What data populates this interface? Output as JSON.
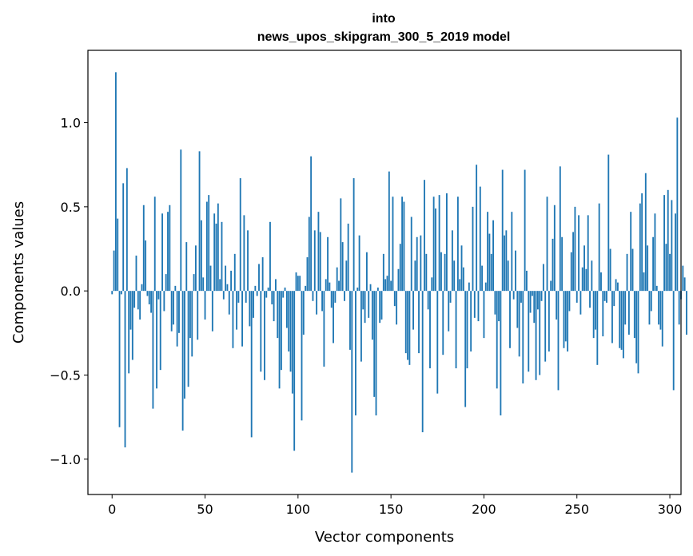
{
  "chart_data": {
    "type": "bar",
    "title_lines": [
      "into",
      "news_upos_skipgram_300_5_2019 model"
    ],
    "xlabel": "Vector components",
    "ylabel": "Components values",
    "xlim": [
      -13,
      306
    ],
    "ylim": [
      -1.21,
      1.43
    ],
    "x_ticks": [
      0,
      50,
      100,
      150,
      200,
      250,
      300
    ],
    "x_tick_labels": [
      "0",
      "50",
      "100",
      "150",
      "200",
      "250",
      "300"
    ],
    "y_ticks": [
      -1.0,
      -0.5,
      0.0,
      0.5,
      1.0
    ],
    "y_tick_labels": [
      "−1.0",
      "−0.5",
      "0.0",
      "0.5",
      "1.0"
    ],
    "grid": false,
    "bar_color": "#1f77b4",
    "bar_width": 0.8,
    "values": [
      -0.02,
      0.24,
      1.3,
      0.43,
      -0.81,
      -0.02,
      0.64,
      -0.93,
      0.73,
      -0.49,
      -0.23,
      -0.41,
      -0.1,
      0.21,
      -0.11,
      -0.17,
      0.04,
      0.51,
      0.3,
      -0.03,
      -0.08,
      -0.13,
      -0.7,
      0.56,
      -0.58,
      -0.05,
      -0.47,
      0.46,
      -0.12,
      0.1,
      0.47,
      0.51,
      -0.24,
      -0.2,
      0.03,
      -0.33,
      -0.25,
      0.84,
      -0.83,
      -0.64,
      0.29,
      -0.57,
      -0.28,
      -0.39,
      0.1,
      0.27,
      -0.29,
      0.83,
      0.42,
      0.08,
      -0.17,
      0.53,
      0.57,
      0.15,
      -0.24,
      0.46,
      0.4,
      0.52,
      0.07,
      0.41,
      -0.05,
      0.15,
      0.04,
      -0.14,
      0.12,
      -0.34,
      0.22,
      -0.23,
      -0.07,
      0.67,
      -0.33,
      0.45,
      -0.07,
      0.36,
      -0.21,
      -0.87,
      -0.16,
      0.03,
      -0.03,
      0.16,
      -0.48,
      0.2,
      -0.53,
      -0.04,
      0.02,
      0.41,
      -0.08,
      -0.18,
      0.07,
      -0.28,
      -0.58,
      -0.47,
      -0.04,
      0.02,
      -0.22,
      -0.36,
      -0.48,
      -0.61,
      -0.95,
      0.11,
      0.09,
      0.09,
      -0.77,
      -0.26,
      0.03,
      0.2,
      0.44,
      0.8,
      -0.06,
      0.36,
      -0.14,
      0.47,
      0.35,
      -0.12,
      -0.45,
      0.07,
      0.32,
      0.05,
      -0.1,
      -0.31,
      -0.07,
      0.14,
      0.06,
      0.55,
      0.29,
      -0.06,
      0.18,
      0.4,
      -0.35,
      -1.08,
      0.67,
      -0.74,
      0.02,
      0.33,
      -0.42,
      -0.11,
      -0.19,
      0.23,
      -0.16,
      0.04,
      -0.29,
      -0.63,
      -0.74,
      0.02,
      -0.19,
      -0.17,
      0.22,
      0.07,
      0.09,
      0.71,
      0.06,
      0.56,
      -0.09,
      -0.2,
      0.13,
      0.28,
      0.56,
      0.53,
      -0.37,
      -0.41,
      -0.44,
      0.44,
      -0.23,
      0.18,
      0.32,
      -0.37,
      0.33,
      -0.84,
      0.66,
      0.22,
      -0.11,
      -0.46,
      0.08,
      0.56,
      0.49,
      -0.61,
      0.57,
      0.23,
      -0.38,
      0.22,
      0.58,
      -0.24,
      -0.07,
      0.36,
      0.18,
      -0.46,
      0.56,
      0.07,
      0.27,
      0.14,
      -0.69,
      -0.46,
      0.05,
      -0.36,
      0.5,
      -0.16,
      0.75,
      -0.18,
      0.62,
      0.15,
      -0.28,
      0.05,
      0.47,
      0.34,
      0.22,
      0.42,
      -0.14,
      -0.58,
      -0.18,
      -0.74,
      0.72,
      0.33,
      0.36,
      0.18,
      -0.34,
      0.47,
      -0.05,
      0.24,
      -0.22,
      -0.39,
      -0.07,
      -0.55,
      0.72,
      0.12,
      -0.48,
      -0.13,
      -0.03,
      -0.19,
      -0.53,
      -0.11,
      -0.5,
      -0.06,
      0.16,
      -0.42,
      0.56,
      -0.36,
      0.06,
      0.31,
      0.51,
      -0.17,
      -0.59,
      0.74,
      0.32,
      -0.34,
      -0.3,
      -0.36,
      -0.12,
      0.23,
      0.35,
      0.5,
      -0.07,
      0.45,
      -0.14,
      0.14,
      0.27,
      0.13,
      0.45,
      -0.1,
      0.18,
      -0.28,
      -0.23,
      -0.44,
      0.52,
      0.11,
      -0.27,
      -0.06,
      -0.07,
      0.81,
      0.25,
      -0.31,
      -0.09,
      0.07,
      0.05,
      -0.34,
      -0.35,
      -0.4,
      -0.2,
      0.22,
      -0.26,
      0.47,
      0.25,
      -0.28,
      -0.43,
      -0.49,
      0.52,
      0.58,
      0.11,
      0.7,
      0.27,
      -0.2,
      -0.12,
      0.32,
      0.46,
      0.03,
      -0.2,
      -0.23,
      -0.33,
      0.57,
      0.28,
      0.6,
      0.22,
      0.54,
      -0.59,
      0.46,
      1.03,
      -0.2,
      -0.05,
      0.15,
      0.08,
      -0.26
    ]
  }
}
